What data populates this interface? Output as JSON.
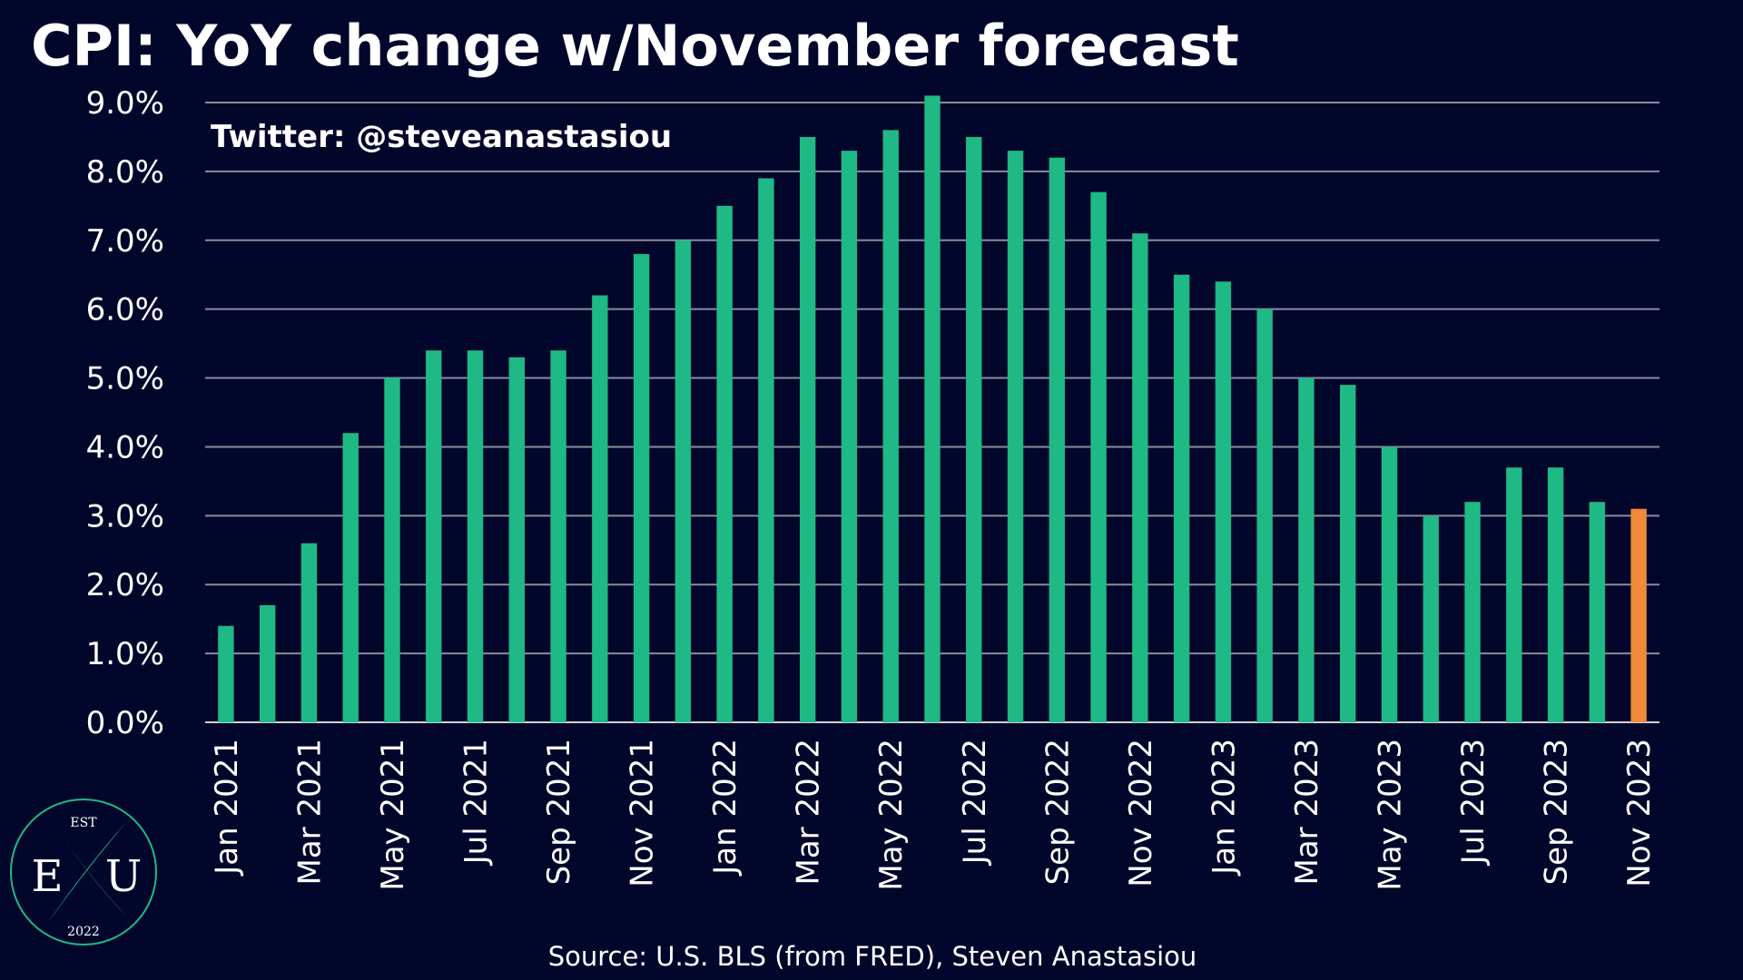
{
  "chart_data": {
    "type": "bar",
    "title": "CPI: YoY change w/November forecast",
    "annotation": "Twitter: @steveanastasiou",
    "source": "Source: U.S. BLS (from FRED), Steven Anastasiou",
    "categories": [
      "Jan 2021",
      null,
      "Mar 2021",
      null,
      "May 2021",
      null,
      "Jul 2021",
      null,
      "Sep 2021",
      null,
      "Nov 2021",
      null,
      "Jan 2022",
      null,
      "Mar 2022",
      null,
      "May 2022",
      null,
      "Jul 2022",
      null,
      "Sep 2022",
      null,
      "Nov 2022",
      null,
      "Jan 2023",
      null,
      "Mar 2023",
      null,
      "May 2023",
      null,
      "Jul 2023",
      null,
      "Sep 2023",
      null,
      "Nov 2023"
    ],
    "values": [
      1.4,
      1.7,
      2.6,
      4.2,
      5.0,
      5.4,
      5.4,
      5.3,
      5.4,
      6.2,
      6.8,
      7.0,
      7.5,
      7.9,
      8.5,
      8.3,
      8.6,
      9.1,
      8.5,
      8.3,
      8.2,
      7.7,
      7.1,
      6.5,
      6.4,
      6.0,
      5.0,
      4.9,
      4.0,
      3.0,
      3.2,
      3.7,
      3.7,
      3.2,
      3.1
    ],
    "colors": [
      "#1fb985",
      "#1fb985",
      "#1fb985",
      "#1fb985",
      "#1fb985",
      "#1fb985",
      "#1fb985",
      "#1fb985",
      "#1fb985",
      "#1fb985",
      "#1fb985",
      "#1fb985",
      "#1fb985",
      "#1fb985",
      "#1fb985",
      "#1fb985",
      "#1fb985",
      "#1fb985",
      "#1fb985",
      "#1fb985",
      "#1fb985",
      "#1fb985",
      "#1fb985",
      "#1fb985",
      "#1fb985",
      "#1fb985",
      "#1fb985",
      "#1fb985",
      "#1fb985",
      "#1fb985",
      "#1fb985",
      "#1fb985",
      "#1fb985",
      "#1fb985",
      "#f0893a"
    ],
    "ylim": [
      0,
      9
    ],
    "yticks": [
      {
        "value": 0,
        "label": "0.0%"
      },
      {
        "value": 1,
        "label": "1.0%"
      },
      {
        "value": 2,
        "label": "2.0%"
      },
      {
        "value": 3,
        "label": "3.0%"
      },
      {
        "value": 4,
        "label": "4.0%"
      },
      {
        "value": 5,
        "label": "5.0%"
      },
      {
        "value": 6,
        "label": "6.0%"
      },
      {
        "value": 7,
        "label": "7.0%"
      },
      {
        "value": 8,
        "label": "8.0%"
      },
      {
        "value": 9,
        "label": "9.0%"
      }
    ],
    "grid": true
  },
  "logo": {
    "top": "EST",
    "left": "E",
    "right": "U",
    "bottom": "2022"
  }
}
